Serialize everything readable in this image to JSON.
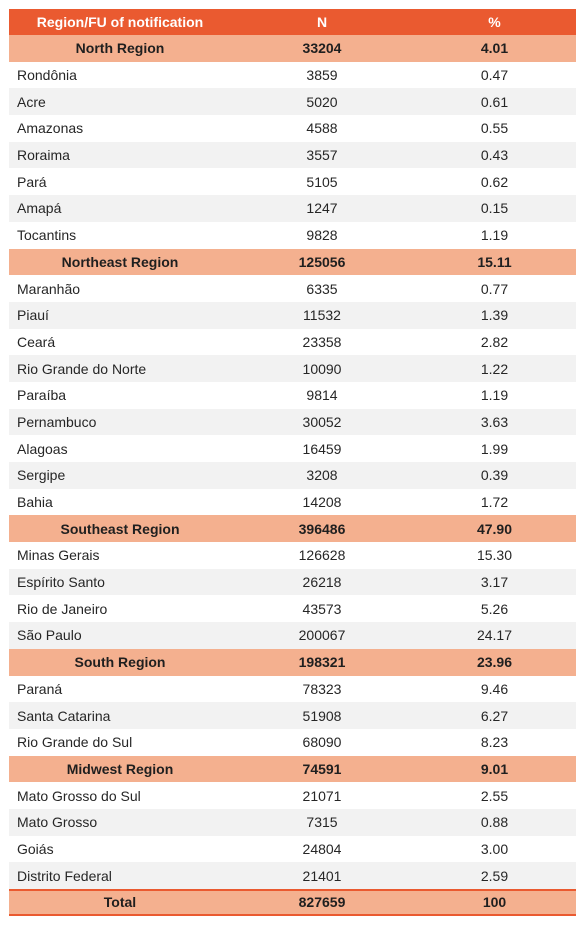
{
  "header": {
    "col1": "Region/FU of notification",
    "col2": "N",
    "col3": "%"
  },
  "regions": [
    {
      "name": "North Region",
      "n": "33204",
      "pct": "4.01",
      "states": [
        {
          "name": "Rondônia",
          "n": "3859",
          "pct": "0.47"
        },
        {
          "name": "Acre",
          "n": "5020",
          "pct": "0.61"
        },
        {
          "name": "Amazonas",
          "n": "4588",
          "pct": "0.55"
        },
        {
          "name": "Roraima",
          "n": "3557",
          "pct": "0.43"
        },
        {
          "name": "Pará",
          "n": "5105",
          "pct": "0.62"
        },
        {
          "name": "Amapá",
          "n": "1247",
          "pct": "0.15"
        },
        {
          "name": "Tocantins",
          "n": "9828",
          "pct": "1.19"
        }
      ]
    },
    {
      "name": "Northeast Region",
      "n": "125056",
      "pct": "15.11",
      "states": [
        {
          "name": "Maranhão",
          "n": "6335",
          "pct": "0.77"
        },
        {
          "name": "Piauí",
          "n": "11532",
          "pct": "1.39"
        },
        {
          "name": "Ceará",
          "n": "23358",
          "pct": "2.82"
        },
        {
          "name": "Rio Grande do Norte",
          "n": "10090",
          "pct": "1.22"
        },
        {
          "name": "Paraíba",
          "n": "9814",
          "pct": "1.19"
        },
        {
          "name": "Pernambuco",
          "n": "30052",
          "pct": "3.63"
        },
        {
          "name": "Alagoas",
          "n": "16459",
          "pct": "1.99"
        },
        {
          "name": "Sergipe",
          "n": "3208",
          "pct": "0.39"
        },
        {
          "name": "Bahia",
          "n": "14208",
          "pct": "1.72"
        }
      ]
    },
    {
      "name": "Southeast Region",
      "n": "396486",
      "pct": "47.90",
      "states": [
        {
          "name": "Minas Gerais",
          "n": "126628",
          "pct": "15.30"
        },
        {
          "name": "Espírito Santo",
          "n": "26218",
          "pct": "3.17"
        },
        {
          "name": "Rio de Janeiro",
          "n": "43573",
          "pct": "5.26"
        },
        {
          "name": "São Paulo",
          "n": "200067",
          "pct": "24.17"
        }
      ]
    },
    {
      "name": "South Region",
      "n": "198321",
      "pct": "23.96",
      "states": [
        {
          "name": "Paraná",
          "n": "78323",
          "pct": "9.46"
        },
        {
          "name": "Santa Catarina",
          "n": "51908",
          "pct": "6.27"
        },
        {
          "name": "Rio Grande do Sul",
          "n": "68090",
          "pct": "8.23"
        }
      ]
    },
    {
      "name": "Midwest Region",
      "n": "74591",
      "pct": "9.01",
      "states": [
        {
          "name": "Mato Grosso do Sul",
          "n": "21071",
          "pct": "2.55"
        },
        {
          "name": "Mato Grosso",
          "n": "7315",
          "pct": "0.88"
        },
        {
          "name": "Goiás",
          "n": "24804",
          "pct": "3.00"
        },
        {
          "name": "Distrito Federal",
          "n": "21401",
          "pct": "2.59"
        }
      ]
    }
  ],
  "total": {
    "name": "Total",
    "n": "827659",
    "pct": "100"
  },
  "colors": {
    "header": "#ea5a30",
    "region": "#f4b08f",
    "band": "#f2f2f2"
  }
}
